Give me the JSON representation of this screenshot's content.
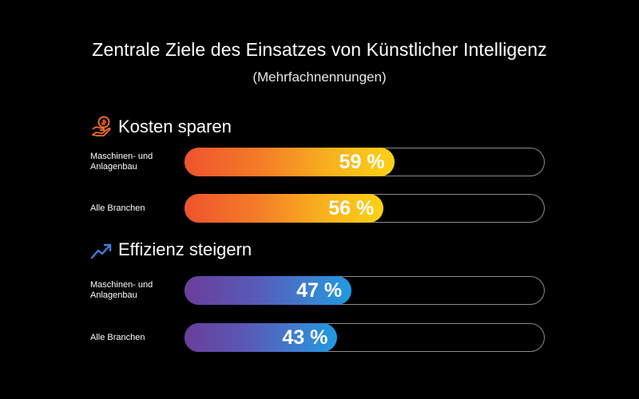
{
  "title": "Zentrale Ziele des Einsatzes von Künstlicher Intelligenz",
  "subtitle": "(Mehrfachnennungen)",
  "colors": {
    "orange_start": "#f0532d",
    "orange_end": "#fbd116",
    "purple_start": "#6a3e9a",
    "purple_end": "#1f9ae2",
    "track_border": "#8c8c8c"
  },
  "chart_data": {
    "type": "bar",
    "orientation": "horizontal",
    "title": "Zentrale Ziele des Einsatzes von Künstlicher Intelligenz",
    "subtitle": "(Mehrfachnennungen)",
    "unit": "%",
    "xlim": [
      0,
      100
    ],
    "groups": [
      {
        "name": "Kosten sparen",
        "icon": "hand-coin-icon",
        "categories": [
          "Maschinen- und Anlagenbau",
          "Alle Branchen"
        ],
        "values": [
          59,
          56
        ],
        "labels": [
          "59 %",
          "56 %"
        ]
      },
      {
        "name": "Effizienz steigern",
        "icon": "trend-up-icon",
        "categories": [
          "Maschinen- und Anlagenbau",
          "Alle Branchen"
        ],
        "values": [
          47,
          43
        ],
        "labels": [
          "47 %",
          "43 %"
        ]
      }
    ]
  }
}
